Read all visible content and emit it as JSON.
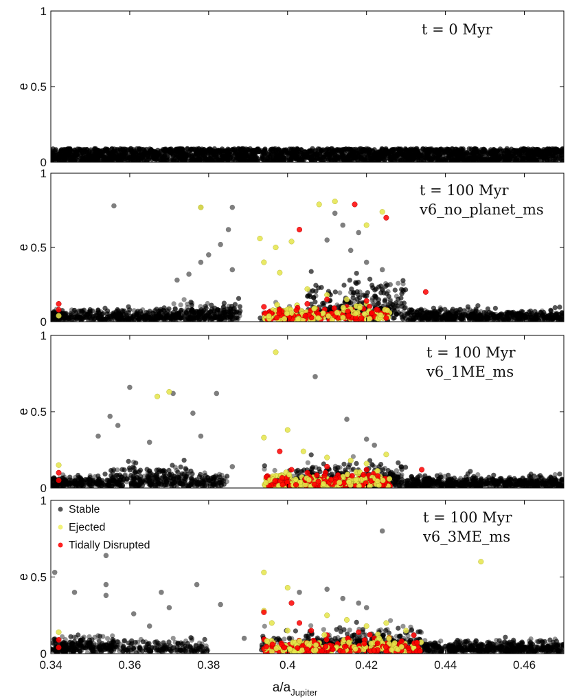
{
  "chart_data": [
    {
      "type": "scatter",
      "ylabel": "e",
      "xlim": [
        0.34,
        0.47
      ],
      "ylim": [
        0,
        1
      ],
      "yticks": [
        "0",
        "0.5",
        "1"
      ],
      "annotation": [
        "t = 0 Myr"
      ],
      "series": [
        {
          "name": "Stable",
          "color": "#000000",
          "points": [
            [
              0.34,
              0.03
            ],
            [
              0.345,
              0.05
            ],
            [
              0.35,
              0.07
            ],
            [
              0.36,
              0.04
            ],
            [
              0.37,
              0.08
            ],
            [
              0.38,
              0.06
            ],
            [
              0.39,
              0.03
            ],
            [
              0.4,
              0.07
            ],
            [
              0.41,
              0.05
            ],
            [
              0.42,
              0.09
            ],
            [
              0.43,
              0.04
            ],
            [
              0.44,
              0.06
            ],
            [
              0.45,
              0.08
            ],
            [
              0.46,
              0.03
            ],
            [
              0.47,
              0.07
            ]
          ]
        }
      ]
    },
    {
      "type": "scatter",
      "ylabel": "e",
      "xlim": [
        0.34,
        0.47
      ],
      "ylim": [
        0,
        1
      ],
      "yticks": [
        "0",
        "0.5",
        "1"
      ],
      "annotation": [
        "t = 100 Myr",
        "v6_no_planet_ms"
      ],
      "series": [
        {
          "name": "Stable",
          "color": "#000000",
          "points": [
            [
              0.356,
              0.78
            ],
            [
              0.378,
              0.77
            ],
            [
              0.386,
              0.77
            ],
            [
              0.385,
              0.62
            ],
            [
              0.383,
              0.52
            ],
            [
              0.38,
              0.45
            ],
            [
              0.378,
              0.4
            ],
            [
              0.375,
              0.32
            ],
            [
              0.372,
              0.28
            ],
            [
              0.386,
              0.35
            ],
            [
              0.412,
              0.73
            ],
            [
              0.414,
              0.65
            ],
            [
              0.418,
              0.6
            ],
            [
              0.41,
              0.55
            ],
            [
              0.416,
              0.48
            ],
            [
              0.42,
              0.4
            ],
            [
              0.424,
              0.35
            ],
            [
              0.426,
              0.25
            ]
          ]
        },
        {
          "name": "Ejected",
          "color": "#e5e54a",
          "points": [
            [
              0.378,
              0.77
            ],
            [
              0.412,
              0.81
            ],
            [
              0.408,
              0.79
            ],
            [
              0.424,
              0.74
            ],
            [
              0.42,
              0.65
            ],
            [
              0.393,
              0.56
            ],
            [
              0.397,
              0.5
            ],
            [
              0.401,
              0.54
            ],
            [
              0.394,
              0.4
            ],
            [
              0.398,
              0.33
            ],
            [
              0.405,
              0.22
            ],
            [
              0.41,
              0.18
            ],
            [
              0.415,
              0.15
            ],
            [
              0.42,
              0.12
            ],
            [
              0.342,
              0.04
            ]
          ]
        },
        {
          "name": "Tidally Disrupted",
          "color": "#ff0000",
          "points": [
            [
              0.417,
              0.79
            ],
            [
              0.403,
              0.62
            ],
            [
              0.425,
              0.7
            ],
            [
              0.342,
              0.12
            ],
            [
              0.342,
              0.08
            ],
            [
              0.394,
              0.1
            ],
            [
              0.4,
              0.06
            ],
            [
              0.405,
              0.12
            ],
            [
              0.41,
              0.15
            ],
            [
              0.415,
              0.1
            ],
            [
              0.42,
              0.14
            ],
            [
              0.425,
              0.08
            ],
            [
              0.435,
              0.2
            ]
          ]
        }
      ]
    },
    {
      "type": "scatter",
      "ylabel": "e",
      "xlim": [
        0.34,
        0.47
      ],
      "ylim": [
        0,
        1
      ],
      "yticks": [
        "0",
        "0.5",
        "1"
      ],
      "annotation": [
        "t = 100 Myr",
        "v6_1ME_ms"
      ],
      "series": [
        {
          "name": "Stable",
          "color": "#000000",
          "points": [
            [
              0.36,
              0.66
            ],
            [
              0.371,
              0.62
            ],
            [
              0.382,
              0.62
            ],
            [
              0.407,
              0.73
            ],
            [
              0.376,
              0.49
            ],
            [
              0.355,
              0.47
            ],
            [
              0.357,
              0.41
            ],
            [
              0.352,
              0.34
            ],
            [
              0.365,
              0.3
            ],
            [
              0.378,
              0.34
            ],
            [
              0.386,
              0.14
            ],
            [
              0.415,
              0.45
            ],
            [
              0.42,
              0.32
            ],
            [
              0.422,
              0.28
            ]
          ]
        },
        {
          "name": "Ejected",
          "color": "#e5e54a",
          "points": [
            [
              0.397,
              0.89
            ],
            [
              0.367,
              0.6
            ],
            [
              0.37,
              0.63
            ],
            [
              0.394,
              0.33
            ],
            [
              0.4,
              0.38
            ],
            [
              0.404,
              0.24
            ],
            [
              0.41,
              0.2
            ],
            [
              0.416,
              0.18
            ],
            [
              0.42,
              0.16
            ],
            [
              0.425,
              0.22
            ],
            [
              0.342,
              0.15
            ]
          ]
        },
        {
          "name": "Tidally Disrupted",
          "color": "#ff0000",
          "points": [
            [
              0.398,
              0.24
            ],
            [
              0.401,
              0.12
            ],
            [
              0.405,
              0.1
            ],
            [
              0.41,
              0.14
            ],
            [
              0.415,
              0.08
            ],
            [
              0.42,
              0.12
            ],
            [
              0.425,
              0.06
            ],
            [
              0.342,
              0.1
            ],
            [
              0.342,
              0.05
            ],
            [
              0.434,
              0.12
            ]
          ]
        }
      ]
    },
    {
      "type": "scatter",
      "ylabel": "e",
      "xlabel": "a/a",
      "xlabel_sub": "Jupiter",
      "xlim": [
        0.34,
        0.47
      ],
      "ylim": [
        0,
        1
      ],
      "xticks": [
        "0.34",
        "0.36",
        "0.38",
        "0.4",
        "0.42",
        "0.44",
        "0.46"
      ],
      "yticks": [
        "0",
        "0.5",
        "1"
      ],
      "annotation": [
        "t = 100 Myr",
        "v6_3ME_ms"
      ],
      "legend": {
        "position": "top-left",
        "entries": [
          "Stable",
          "Ejected",
          "Tidally Disrupted"
        ]
      },
      "series": [
        {
          "name": "Stable",
          "color": "#000000",
          "points": [
            [
              0.424,
              0.8
            ],
            [
              0.341,
              0.53
            ],
            [
              0.354,
              0.64
            ],
            [
              0.354,
              0.45
            ],
            [
              0.354,
              0.38
            ],
            [
              0.346,
              0.4
            ],
            [
              0.361,
              0.26
            ],
            [
              0.365,
              0.18
            ],
            [
              0.368,
              0.4
            ],
            [
              0.37,
              0.3
            ],
            [
              0.377,
              0.45
            ],
            [
              0.383,
              0.32
            ],
            [
              0.389,
              0.1
            ],
            [
              0.403,
              0.4
            ],
            [
              0.41,
              0.42
            ],
            [
              0.414,
              0.36
            ],
            [
              0.418,
              0.33
            ],
            [
              0.42,
              0.3
            ]
          ]
        },
        {
          "name": "Ejected",
          "color": "#e5e54a",
          "points": [
            [
              0.449,
              0.6
            ],
            [
              0.394,
              0.53
            ],
            [
              0.4,
              0.43
            ],
            [
              0.394,
              0.28
            ],
            [
              0.396,
              0.2
            ],
            [
              0.4,
              0.15
            ],
            [
              0.41,
              0.25
            ],
            [
              0.415,
              0.22
            ],
            [
              0.42,
              0.18
            ],
            [
              0.425,
              0.2
            ],
            [
              0.43,
              0.15
            ],
            [
              0.342,
              0.14
            ]
          ]
        },
        {
          "name": "Tidally Disrupted",
          "color": "#ff0000",
          "points": [
            [
              0.394,
              0.27
            ],
            [
              0.401,
              0.33
            ],
            [
              0.403,
              0.2
            ],
            [
              0.406,
              0.15
            ],
            [
              0.41,
              0.12
            ],
            [
              0.414,
              0.08
            ],
            [
              0.418,
              0.14
            ],
            [
              0.422,
              0.1
            ],
            [
              0.427,
              0.06
            ],
            [
              0.432,
              0.12
            ],
            [
              0.342,
              0.09
            ],
            [
              0.342,
              0.04
            ]
          ]
        }
      ]
    }
  ]
}
